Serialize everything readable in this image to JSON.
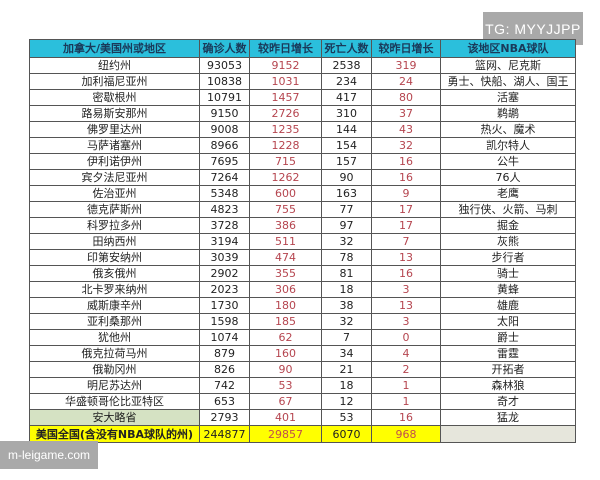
{
  "watermarks": {
    "top": "TG: MYYJJPP",
    "bottom": "m-leigame.com"
  },
  "colors": {
    "header": "#2bbfdc",
    "increase_text": "#b5454f",
    "ontario_cell": "#d5e2c3",
    "total_row": "#ffff00"
  },
  "headers": [
    "加拿大/美国州或地区",
    "确诊人数",
    "较昨日增长",
    "死亡人数",
    "较昨日增长",
    "该地区NBA球队"
  ],
  "rows": [
    [
      "纽约州",
      "93053",
      "9152",
      "2538",
      "319",
      "篮网、尼克斯"
    ],
    [
      "加利福尼亚州",
      "10838",
      "1031",
      "234",
      "24",
      "勇士、快船、湖人、国王"
    ],
    [
      "密歇根州",
      "10791",
      "1457",
      "417",
      "80",
      "活塞"
    ],
    [
      "路易斯安那州",
      "9150",
      "2726",
      "310",
      "37",
      "鹈鹕"
    ],
    [
      "佛罗里达州",
      "9008",
      "1235",
      "144",
      "43",
      "热火、魔术"
    ],
    [
      "马萨诸塞州",
      "8966",
      "1228",
      "154",
      "32",
      "凯尔特人"
    ],
    [
      "伊利诺伊州",
      "7695",
      "715",
      "157",
      "16",
      "公牛"
    ],
    [
      "宾夕法尼亚州",
      "7264",
      "1262",
      "90",
      "16",
      "76人"
    ],
    [
      "佐治亚州",
      "5348",
      "600",
      "163",
      "9",
      "老鹰"
    ],
    [
      "德克萨斯州",
      "4823",
      "755",
      "77",
      "17",
      "独行侠、火箭、马刺"
    ],
    [
      "科罗拉多州",
      "3728",
      "386",
      "97",
      "17",
      "掘金"
    ],
    [
      "田纳西州",
      "3194",
      "511",
      "32",
      "7",
      "灰熊"
    ],
    [
      "印第安纳州",
      "3039",
      "474",
      "78",
      "13",
      "步行者"
    ],
    [
      "俄亥俄州",
      "2902",
      "355",
      "81",
      "16",
      "骑士"
    ],
    [
      "北卡罗来纳州",
      "2023",
      "306",
      "18",
      "3",
      "黄蜂"
    ],
    [
      "威斯康辛州",
      "1730",
      "180",
      "38",
      "13",
      "雄鹿"
    ],
    [
      "亚利桑那州",
      "1598",
      "185",
      "32",
      "3",
      "太阳"
    ],
    [
      "犹他州",
      "1074",
      "62",
      "7",
      "0",
      "爵士"
    ],
    [
      "俄克拉荷马州",
      "879",
      "160",
      "34",
      "4",
      "雷霆"
    ],
    [
      "俄勒冈州",
      "826",
      "90",
      "21",
      "2",
      "开拓者"
    ],
    [
      "明尼苏达州",
      "742",
      "53",
      "18",
      "1",
      "森林狼"
    ],
    [
      "华盛顿哥伦比亚特区",
      "653",
      "67",
      "12",
      "1",
      "奇才"
    ],
    [
      "安大略省",
      "2793",
      "401",
      "53",
      "16",
      "猛龙"
    ]
  ],
  "total": [
    "美国全国(含没有NBA球队的州)",
    "244877",
    "29857",
    "6070",
    "968",
    ""
  ]
}
